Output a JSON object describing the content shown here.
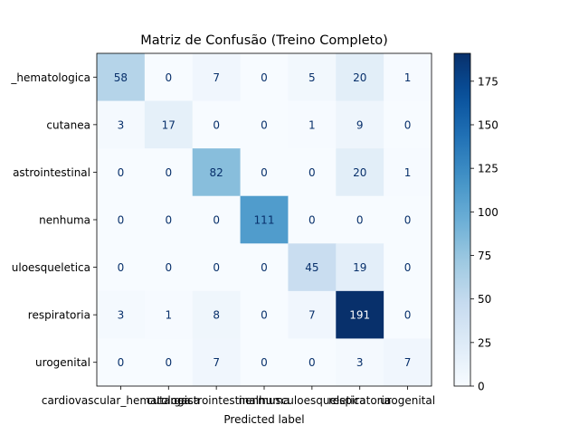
{
  "chart_data": {
    "type": "heatmap",
    "title": "Matriz de Confusão (Treino Completo)",
    "xlabel": "Predicted label",
    "ylabel": "",
    "x_tick_labels": [
      "cardiovascular_hematologica",
      "cutanea",
      "gastrointestinal",
      "nenhuma",
      "musculoesqueletica",
      "respiratoria",
      "urogenital"
    ],
    "y_tick_labels": [
      "_hematologica",
      "cutanea",
      "astrointestinal",
      "nenhuma",
      "uloesqueletica",
      "respiratoria",
      "urogenital"
    ],
    "matrix": [
      [
        58,
        0,
        7,
        0,
        5,
        20,
        1
      ],
      [
        3,
        17,
        0,
        0,
        1,
        9,
        0
      ],
      [
        0,
        0,
        82,
        0,
        0,
        20,
        1
      ],
      [
        0,
        0,
        0,
        111,
        0,
        0,
        0
      ],
      [
        0,
        0,
        0,
        0,
        45,
        19,
        0
      ],
      [
        3,
        1,
        8,
        0,
        7,
        191,
        0
      ],
      [
        0,
        0,
        7,
        0,
        0,
        3,
        7
      ]
    ],
    "colormap": "Blues",
    "vmin": 0,
    "vmax": 191,
    "colorbar_ticks": [
      0,
      25,
      50,
      75,
      100,
      125,
      150,
      175
    ]
  }
}
